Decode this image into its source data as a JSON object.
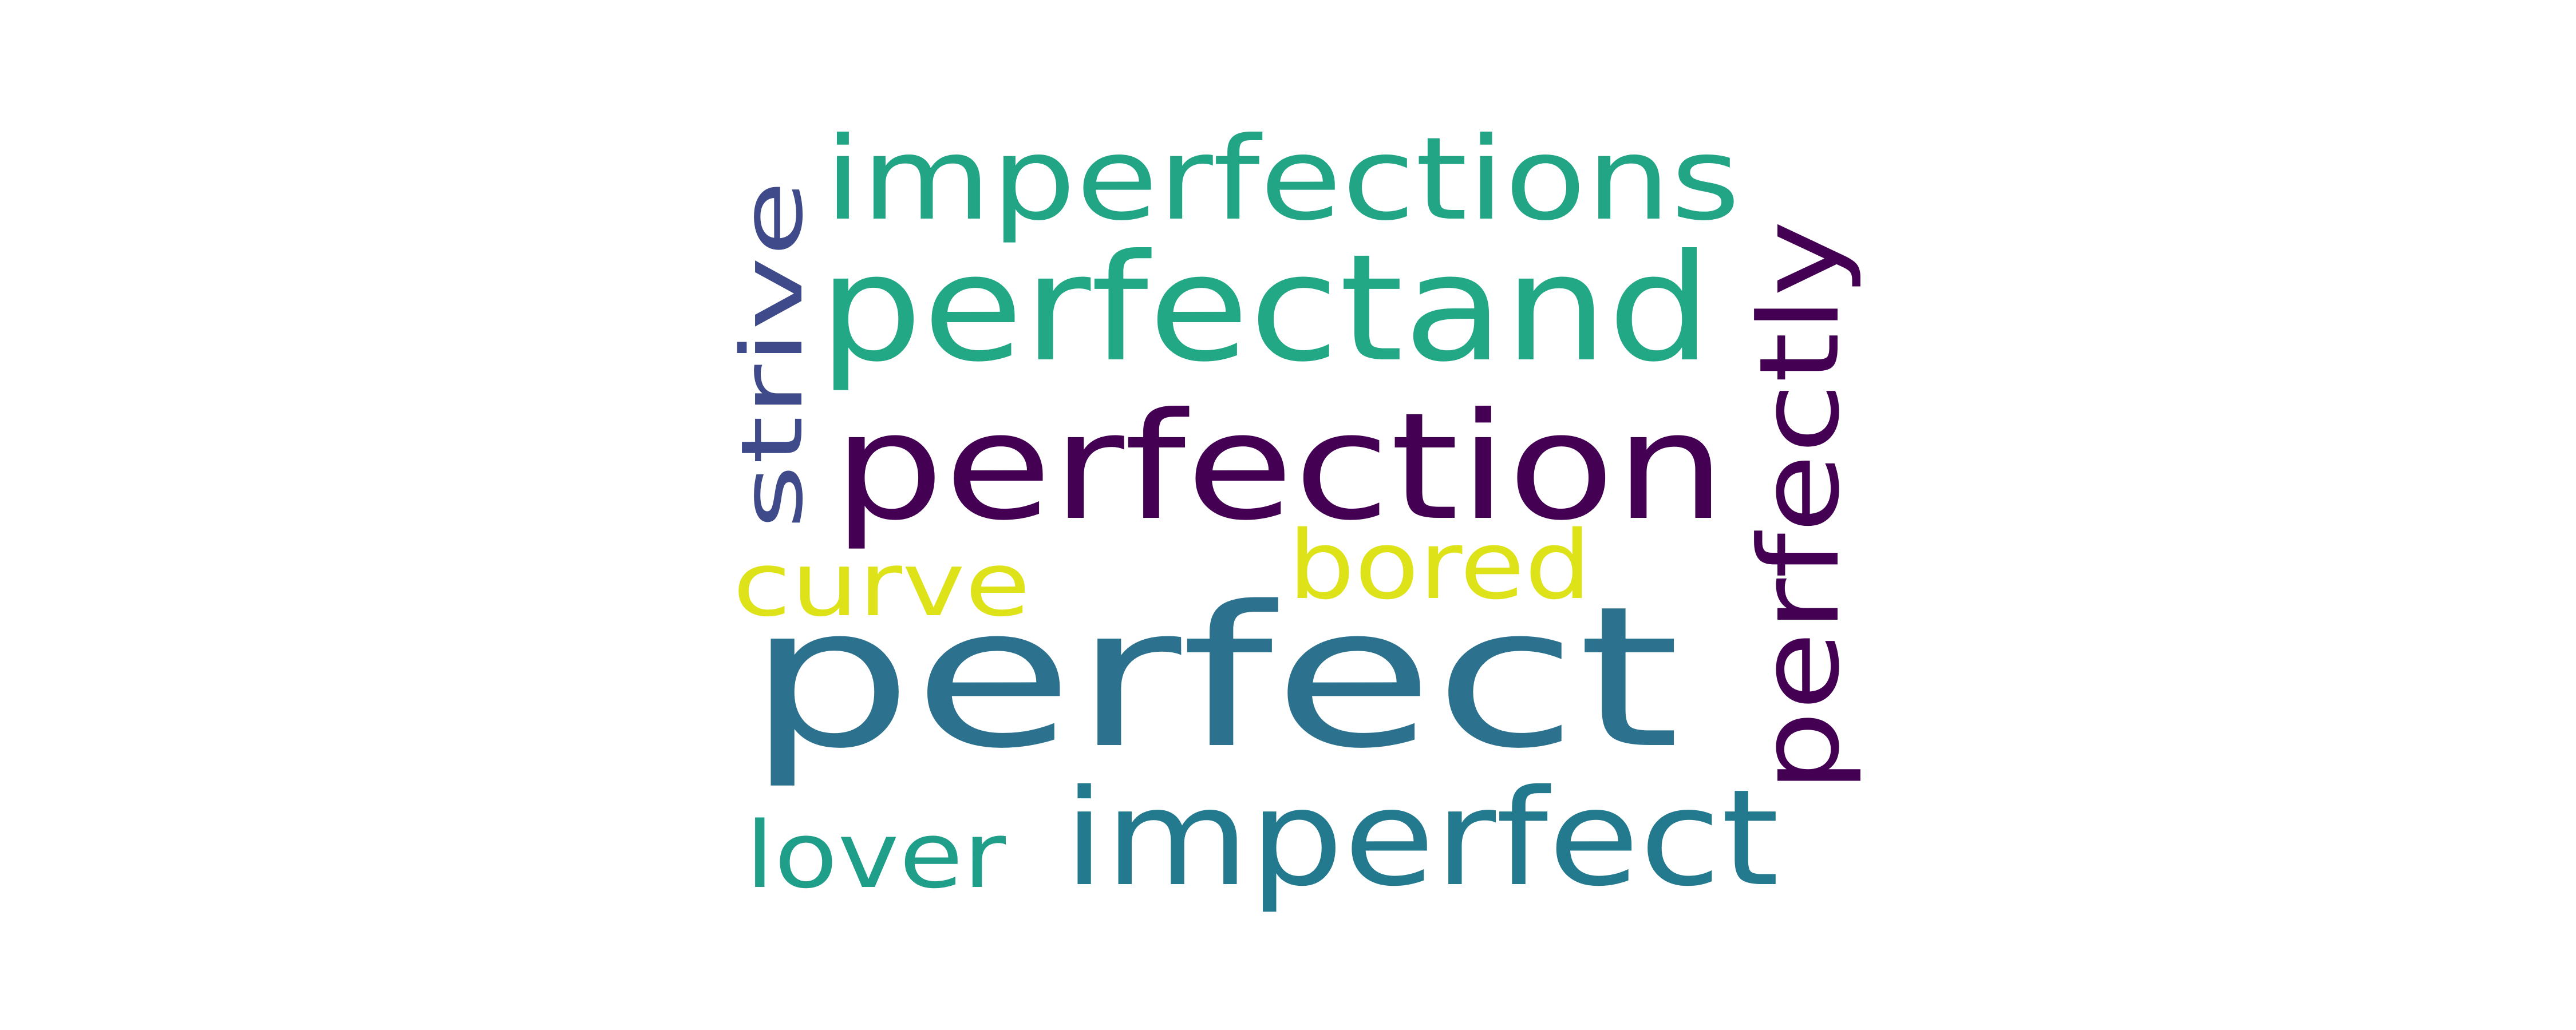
{
  "words": [
    {
      "text": "perfect",
      "color": "#2c728e",
      "rotated": false
    },
    {
      "text": "perfection",
      "color": "#440154",
      "rotated": false
    },
    {
      "text": "perfectand",
      "color": "#22a884",
      "rotated": false
    },
    {
      "text": "imperfections",
      "color": "#21a585",
      "rotated": false
    },
    {
      "text": "imperfect",
      "color": "#23798e",
      "rotated": false
    },
    {
      "text": "perfectly",
      "color": "#440154",
      "rotated": true
    },
    {
      "text": "strive",
      "color": "#3e4a89",
      "rotated": true
    },
    {
      "text": "bored",
      "color": "#dde318",
      "rotated": false
    },
    {
      "text": "curve",
      "color": "#dde318",
      "rotated": false
    },
    {
      "text": "lover",
      "color": "#1f9e89",
      "rotated": false
    }
  ]
}
